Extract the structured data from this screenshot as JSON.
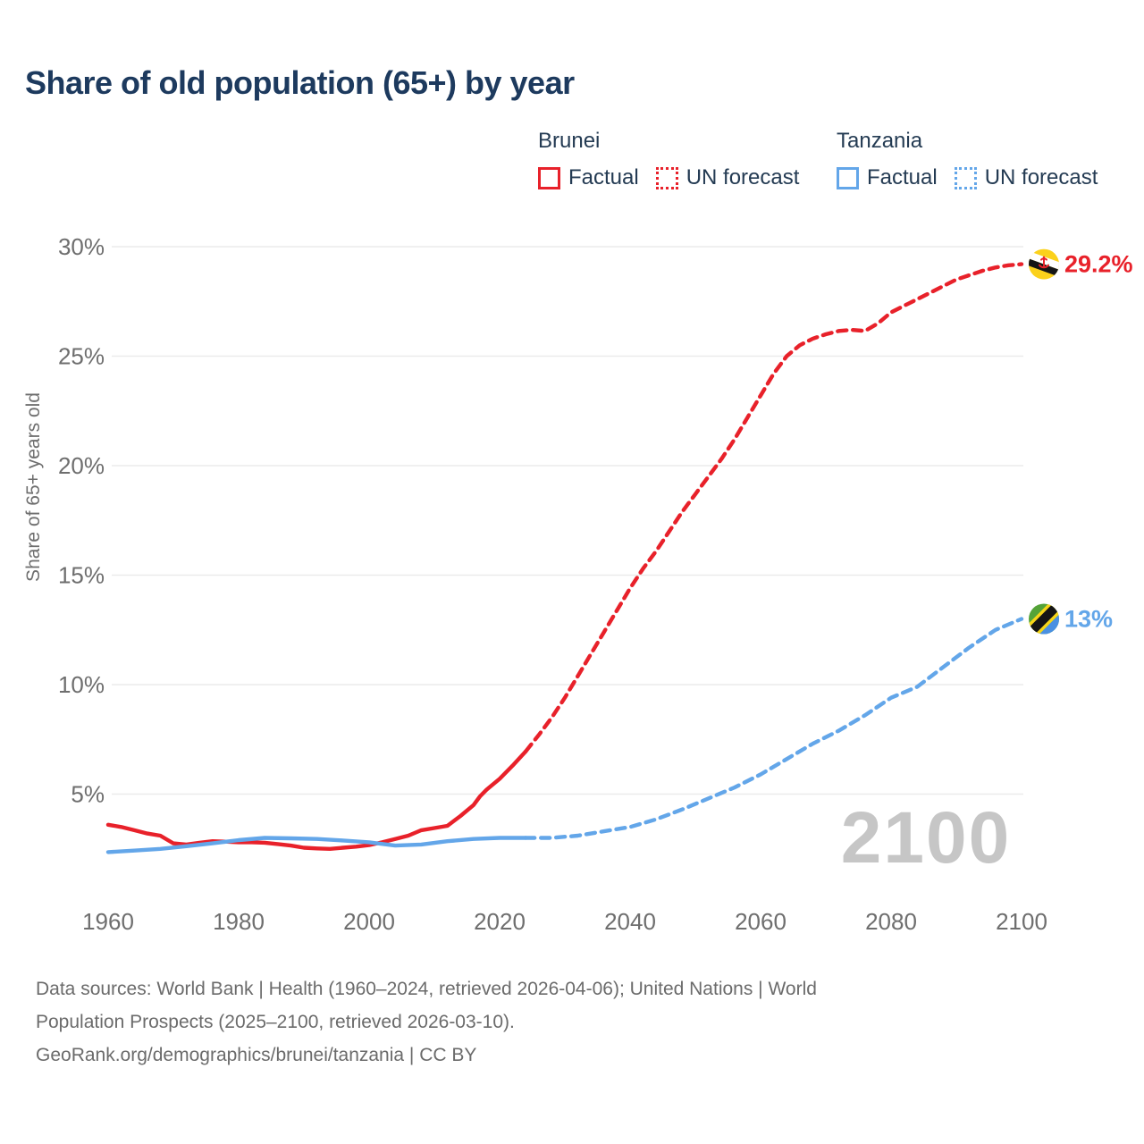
{
  "page": {
    "title": "Share of old population (65+) by year"
  },
  "legend": {
    "groups": [
      {
        "country": "Brunei",
        "color": "#e8212a",
        "items": [
          {
            "label": "Factual",
            "style": "solid"
          },
          {
            "label": "UN forecast",
            "style": "dotted"
          }
        ]
      },
      {
        "country": "Tanzania",
        "color": "#63a6e9",
        "items": [
          {
            "label": "Factual",
            "style": "solid"
          },
          {
            "label": "UN forecast",
            "style": "dotted"
          }
        ]
      }
    ]
  },
  "chart_data": {
    "type": "line",
    "title": "Share of old population (65+) by year",
    "xlabel": "",
    "ylabel": "Share of 65+ years old",
    "xlim": [
      1959,
      2101
    ],
    "ylim": [
      0,
      30
    ],
    "grid": "horizontal-only",
    "legend_position": "top-right",
    "watermark": "2100",
    "x_tick_values": [
      1960,
      1980,
      2000,
      2020,
      2040,
      2060,
      2080,
      2100
    ],
    "x_tick_labels": [
      "1960",
      "1980",
      "2000",
      "2020",
      "2040",
      "2060",
      "2080",
      "2100"
    ],
    "y_tick_values": [
      5,
      10,
      15,
      20,
      25,
      30
    ],
    "y_tick_labels": [
      "5%",
      "10%",
      "15%",
      "20%",
      "25%",
      "30%"
    ],
    "colors": {
      "brunei": "#e8212a",
      "tanzania": "#63a6e9",
      "grid": "#ebebeb",
      "axis_text": "#6e6e6e",
      "watermark": "#c6c6c6",
      "title": "#1d3a5e"
    },
    "series": [
      {
        "name": "Brunei Factual",
        "color": "#e8212a",
        "style": "solid",
        "points": [
          [
            1960,
            3.6
          ],
          [
            1962,
            3.5
          ],
          [
            1964,
            3.35
          ],
          [
            1966,
            3.2
          ],
          [
            1968,
            3.1
          ],
          [
            1970,
            2.75
          ],
          [
            1972,
            2.7
          ],
          [
            1974,
            2.78
          ],
          [
            1976,
            2.85
          ],
          [
            1978,
            2.83
          ],
          [
            1980,
            2.8
          ],
          [
            1982,
            2.8
          ],
          [
            1984,
            2.78
          ],
          [
            1986,
            2.72
          ],
          [
            1988,
            2.65
          ],
          [
            1990,
            2.55
          ],
          [
            1992,
            2.52
          ],
          [
            1994,
            2.5
          ],
          [
            1996,
            2.55
          ],
          [
            1998,
            2.6
          ],
          [
            2000,
            2.67
          ],
          [
            2002,
            2.8
          ],
          [
            2004,
            2.95
          ],
          [
            2006,
            3.1
          ],
          [
            2008,
            3.35
          ],
          [
            2010,
            3.45
          ],
          [
            2012,
            3.55
          ],
          [
            2014,
            4.0
          ],
          [
            2016,
            4.5
          ],
          [
            2017,
            4.9
          ],
          [
            2018,
            5.2
          ],
          [
            2020,
            5.7
          ],
          [
            2022,
            6.3
          ],
          [
            2024,
            6.95
          ]
        ]
      },
      {
        "name": "Brunei UN forecast",
        "color": "#e8212a",
        "style": "dashed",
        "points": [
          [
            2024,
            6.95
          ],
          [
            2026,
            7.7
          ],
          [
            2028,
            8.5
          ],
          [
            2030,
            9.4
          ],
          [
            2032,
            10.4
          ],
          [
            2034,
            11.4
          ],
          [
            2036,
            12.4
          ],
          [
            2038,
            13.4
          ],
          [
            2040,
            14.4
          ],
          [
            2042,
            15.3
          ],
          [
            2044,
            16.1
          ],
          [
            2046,
            17.0
          ],
          [
            2048,
            17.9
          ],
          [
            2050,
            18.7
          ],
          [
            2052,
            19.5
          ],
          [
            2054,
            20.3
          ],
          [
            2056,
            21.2
          ],
          [
            2058,
            22.2
          ],
          [
            2060,
            23.2
          ],
          [
            2062,
            24.2
          ],
          [
            2064,
            25.0
          ],
          [
            2066,
            25.5
          ],
          [
            2068,
            25.8
          ],
          [
            2070,
            26.0
          ],
          [
            2072,
            26.15
          ],
          [
            2074,
            26.2
          ],
          [
            2076,
            26.15
          ],
          [
            2078,
            26.5
          ],
          [
            2080,
            27.0
          ],
          [
            2082,
            27.3
          ],
          [
            2084,
            27.6
          ],
          [
            2086,
            27.9
          ],
          [
            2088,
            28.2
          ],
          [
            2090,
            28.5
          ],
          [
            2092,
            28.7
          ],
          [
            2094,
            28.9
          ],
          [
            2096,
            29.05
          ],
          [
            2098,
            29.15
          ],
          [
            2100,
            29.2
          ]
        ]
      },
      {
        "name": "Tanzania Factual",
        "color": "#63a6e9",
        "style": "solid",
        "points": [
          [
            1960,
            2.35
          ],
          [
            1964,
            2.42
          ],
          [
            1968,
            2.5
          ],
          [
            1972,
            2.62
          ],
          [
            1976,
            2.75
          ],
          [
            1980,
            2.9
          ],
          [
            1984,
            3.0
          ],
          [
            1988,
            2.98
          ],
          [
            1992,
            2.95
          ],
          [
            1996,
            2.88
          ],
          [
            2000,
            2.8
          ],
          [
            2004,
            2.65
          ],
          [
            2008,
            2.7
          ],
          [
            2012,
            2.85
          ],
          [
            2016,
            2.95
          ],
          [
            2020,
            3.0
          ],
          [
            2024,
            3.0
          ]
        ]
      },
      {
        "name": "Tanzania UN forecast",
        "color": "#63a6e9",
        "style": "dashed",
        "points": [
          [
            2024,
            3.0
          ],
          [
            2028,
            3.0
          ],
          [
            2032,
            3.1
          ],
          [
            2036,
            3.3
          ],
          [
            2040,
            3.5
          ],
          [
            2044,
            3.85
          ],
          [
            2048,
            4.3
          ],
          [
            2052,
            4.8
          ],
          [
            2056,
            5.3
          ],
          [
            2060,
            5.9
          ],
          [
            2064,
            6.6
          ],
          [
            2068,
            7.3
          ],
          [
            2072,
            7.9
          ],
          [
            2076,
            8.6
          ],
          [
            2080,
            9.4
          ],
          [
            2084,
            9.9
          ],
          [
            2088,
            10.8
          ],
          [
            2092,
            11.7
          ],
          [
            2096,
            12.5
          ],
          [
            2100,
            13.0
          ]
        ]
      }
    ],
    "end_markers": [
      {
        "series": "Brunei",
        "flag": "brunei-flag-icon",
        "year": 2100,
        "value": 29.2,
        "label": "29.2%",
        "color": "#e8212a"
      },
      {
        "series": "Tanzania",
        "flag": "tanzania-flag-icon",
        "year": 2100,
        "value": 13,
        "label": "13%",
        "color": "#63a6e9"
      }
    ]
  },
  "footer": {
    "lines": [
      "Data sources: World Bank | Health (1960–2024, retrieved 2026-04-06); United Nations | World",
      "Population Prospects (2025–2100, retrieved 2026-03-10).",
      "GeoRank.org/demographics/brunei/tanzania | CC BY"
    ]
  }
}
